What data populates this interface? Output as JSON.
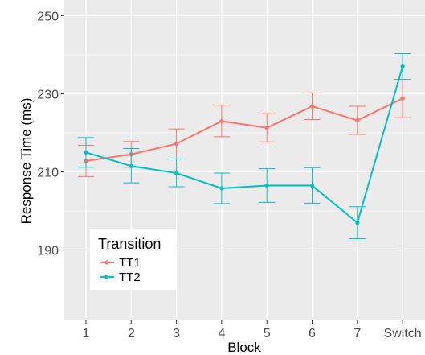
{
  "chart_data": {
    "type": "line",
    "xlabel": "Block",
    "ylabel": "Response Time (ms)",
    "categories": [
      "1",
      "2",
      "3",
      "4",
      "5",
      "6",
      "7",
      "Switch"
    ],
    "ylim": [
      172,
      254
    ],
    "yticks": [
      190,
      210,
      230,
      250
    ],
    "grid": true,
    "legend": {
      "title": "Transition",
      "position": "bottom-left"
    },
    "series": [
      {
        "name": "TT1",
        "color": "#f8766d",
        "values": [
          212.8,
          214.5,
          217.2,
          223.0,
          221.3,
          226.8,
          223.2,
          228.8
        ],
        "err_low": [
          208.8,
          211.2,
          213.3,
          219.0,
          217.7,
          223.4,
          219.6,
          223.9
        ],
        "err_high": [
          216.8,
          217.8,
          221.0,
          227.1,
          224.9,
          230.2,
          226.8,
          233.7
        ]
      },
      {
        "name": "TT2",
        "color": "#00bfc4",
        "values": [
          215.0,
          211.5,
          209.7,
          205.8,
          206.5,
          206.5,
          197.0,
          237.0
        ],
        "err_low": [
          211.2,
          207.2,
          206.2,
          201.9,
          202.2,
          202.0,
          192.9,
          233.6
        ],
        "err_high": [
          218.8,
          216.0,
          213.3,
          209.7,
          210.8,
          211.1,
          201.1,
          240.3
        ]
      }
    ]
  }
}
